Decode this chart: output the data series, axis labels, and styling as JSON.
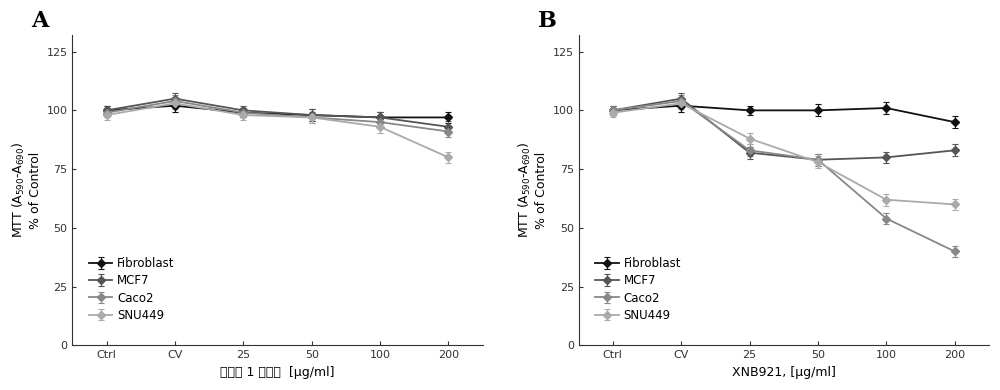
{
  "panel_A": {
    "label": "A",
    "xlabel1": "比较例 1 提取物",
    "xlabel2": "[μg/ml]",
    "xtick_labels": [
      "Ctrl",
      "CV",
      "25",
      "50",
      "100",
      "200"
    ],
    "series": {
      "Fibroblast": {
        "y": [
          100,
          102,
          99,
          98,
          97,
          97
        ],
        "yerr": [
          2.0,
          2.5,
          2.0,
          2.5,
          2.5,
          2.5
        ]
      },
      "MCF7": {
        "y": [
          100,
          105,
          100,
          98,
          97,
          93
        ],
        "yerr": [
          2.0,
          2.5,
          2.0,
          2.5,
          2.5,
          2.5
        ]
      },
      "Caco2": {
        "y": [
          99,
          104,
          99,
          97,
          95,
          91
        ],
        "yerr": [
          2.0,
          2.5,
          2.0,
          2.5,
          2.5,
          2.5
        ]
      },
      "SNU449": {
        "y": [
          98,
          103,
          98,
          97,
          93,
          80
        ],
        "yerr": [
          2.0,
          2.5,
          2.0,
          2.5,
          2.5,
          2.5
        ]
      }
    }
  },
  "panel_B": {
    "label": "B",
    "xlabel1": "XNB921, [μg/ml]",
    "xlabel2": "",
    "xtick_labels": [
      "Ctrl",
      "CV",
      "25",
      "50",
      "100",
      "200"
    ],
    "series": {
      "Fibroblast": {
        "y": [
          100,
          102,
          100,
          100,
          101,
          95
        ],
        "yerr": [
          2.0,
          2.5,
          2.0,
          2.5,
          2.5,
          2.5
        ]
      },
      "MCF7": {
        "y": [
          100,
          105,
          82,
          79,
          80,
          83
        ],
        "yerr": [
          2.0,
          2.5,
          2.5,
          2.5,
          2.5,
          2.5
        ]
      },
      "Caco2": {
        "y": [
          100,
          104,
          83,
          79,
          54,
          40
        ],
        "yerr": [
          2.0,
          2.5,
          2.5,
          2.5,
          2.5,
          2.5
        ]
      },
      "SNU449": {
        "y": [
          99,
          103,
          88,
          78,
          62,
          60
        ],
        "yerr": [
          2.0,
          2.5,
          2.5,
          2.5,
          2.5,
          2.5
        ]
      }
    }
  },
  "ylim": [
    0,
    132
  ],
  "yticks": [
    0,
    25,
    50,
    75,
    100,
    125
  ],
  "legend_fontsize": 8.5,
  "tick_fontsize": 8,
  "label_fontsize": 9,
  "panel_label_fontsize": 16,
  "line_width": 1.3,
  "marker_size": 4.5,
  "background_color": "#ffffff",
  "gray_colors": [
    "#111111",
    "#555555",
    "#888888",
    "#aaaaaa"
  ]
}
